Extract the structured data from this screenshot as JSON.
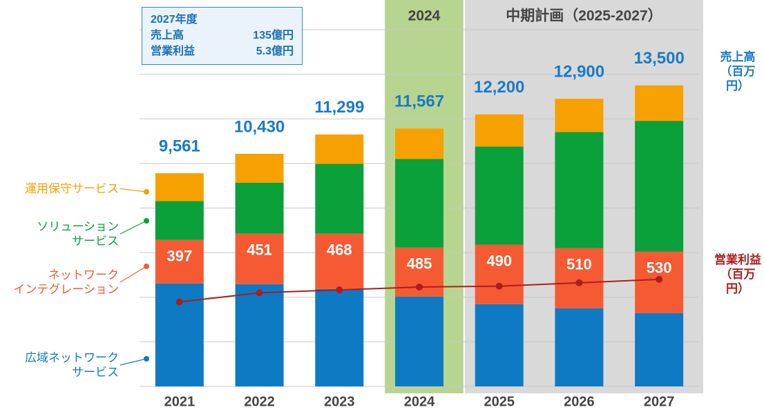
{
  "chart_data": {
    "type": "bar",
    "stacked": true,
    "categories": [
      "2021",
      "2022",
      "2023",
      "2024",
      "2025",
      "2026",
      "2027"
    ],
    "series": [
      {
        "name": "広域ネットワーク\nサービス",
        "color": "#0e7ac4",
        "values": [
          4620,
          4590,
          4370,
          4030,
          3690,
          3500,
          3290
        ]
      },
      {
        "name": "ネットワーク\nインテグレーション",
        "color": "#f55a33",
        "values": [
          1950,
          2260,
          2480,
          2200,
          2670,
          2700,
          2760
        ]
      },
      {
        "name": "ソリューション\nサービス",
        "color": "#0aa03a",
        "values": [
          1740,
          2290,
          3130,
          3970,
          4400,
          5210,
          5860
        ]
      },
      {
        "name": "運用保守サービス",
        "color": "#f7a100",
        "values": [
          1251,
          1290,
          1319,
          1367,
          1440,
          1490,
          1590
        ]
      },
      {
        "name": "営業利益\n（百万円）",
        "type": "line",
        "axis": "y2",
        "color": "#b01c1c",
        "values": [
          397,
          451,
          468,
          485,
          490,
          510,
          530
        ]
      }
    ],
    "totals": [
      9561,
      10430,
      11299,
      11567,
      12200,
      12900,
      13500
    ],
    "total_labels": [
      "9,561",
      "10,430",
      "11,299",
      "11,567",
      "12,200",
      "12,900",
      "13,500"
    ],
    "ylabel": "売上高\n（百万円）",
    "ylim": [
      0,
      16000
    ],
    "yticks": [
      2000,
      4000,
      6000,
      8000,
      10000,
      12000,
      14000,
      16000
    ],
    "grid": true,
    "y2lim": [
      -100,
      2000
    ],
    "highlights": [
      {
        "label": "2024",
        "from": "2024",
        "to": "2024",
        "color": "#b7d590"
      },
      {
        "label": "中期計画（2025-2027）",
        "from": "2025",
        "to": "2027",
        "color": "#d9d9d9"
      }
    ],
    "note": {
      "title": "2027年度",
      "rows": [
        [
          "売上高",
          "135億円"
        ],
        [
          "営業利益",
          "5.3億円"
        ]
      ]
    }
  }
}
